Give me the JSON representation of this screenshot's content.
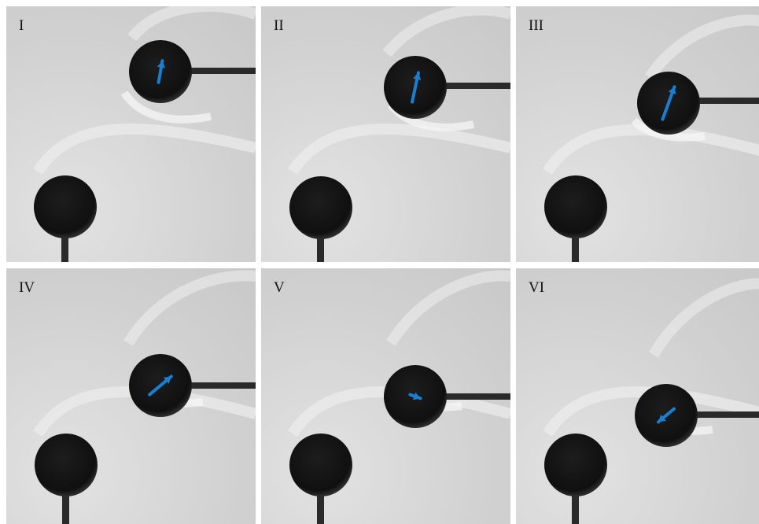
{
  "figure": {
    "panels": [
      {
        "id": "panel-1",
        "label": "I",
        "arrow_angle_deg": -80,
        "arrow_length": 28
      },
      {
        "id": "panel-2",
        "label": "II",
        "arrow_angle_deg": -78,
        "arrow_length": 38
      },
      {
        "id": "panel-3",
        "label": "III",
        "arrow_angle_deg": -70,
        "arrow_length": 44
      },
      {
        "id": "panel-4",
        "label": "IV",
        "arrow_angle_deg": -40,
        "arrow_length": 36
      },
      {
        "id": "panel-5",
        "label": "V",
        "arrow_angle_deg": 20,
        "arrow_length": 14
      },
      {
        "id": "panel-6",
        "label": "VI",
        "arrow_angle_deg": 140,
        "arrow_length": 26
      }
    ],
    "colors": {
      "background": "#d3d3d3",
      "sphere": "#141414",
      "rod": "#2a2a2a",
      "arrow": "#1a7fd1"
    }
  }
}
